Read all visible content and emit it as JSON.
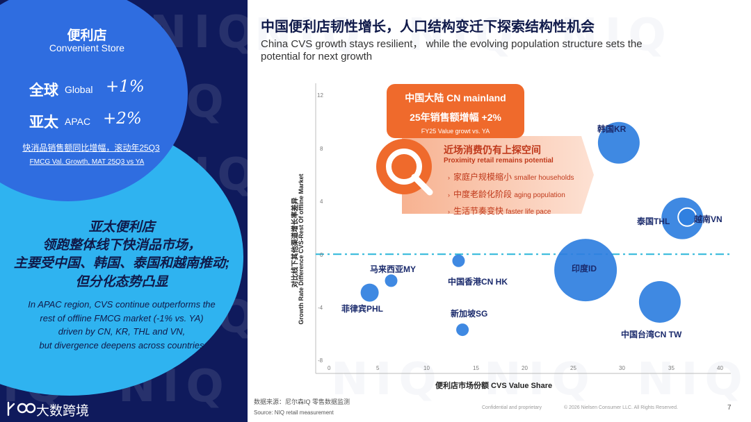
{
  "left": {
    "title_cn": "便利店",
    "title_en": "Convenient Store",
    "global_cn": "全球",
    "global_en": "Global",
    "global_value": "+1%",
    "apac_cn": "亚太",
    "apac_en": "APAC",
    "apac_value": "+2%",
    "note_cn": "快消品销售额同比增幅，滚动年25Q3",
    "note_en": "FMCG Val. Growth, MAT 25Q3 vs YA",
    "headline_lines": [
      "亚太便利店",
      "领跑整体线下快消品市场，",
      "主要受中国、韩国、泰国和越南推动;",
      "但分化态势凸显"
    ],
    "body_lines": [
      "In APAC region, CVS continue outperforms the",
      "rest of offline FMCG market (-1% vs. YA)",
      "driven by CN, KR, THL and VN,",
      "but divergence deepens across countries"
    ],
    "logo_text": "大数跨境"
  },
  "right": {
    "title_cn": "中国便利店韧性增长，人口结构变迁下探索结构性机会",
    "subtitle_line1": "China CVS growth stays resilient， while the evolving population structure sets the",
    "subtitle_line2": "potential for next growth",
    "callout_title": "中国大陆 CN mainland",
    "callout_value": "25年销售额增幅 +2%",
    "callout_note": "FY25 Value growt vs. YA",
    "arrow_title_cn": "近场消费仍有上探空间",
    "arrow_title_en": "Proximity retail remains  potential",
    "arrow_items": [
      {
        "cn": "家庭户规模缩小",
        "en": "smaller households"
      },
      {
        "cn": "中度老龄化阶段",
        "en": "aging population"
      },
      {
        "cn": "生活节奏变快",
        "en": "faster life pace"
      }
    ],
    "source_cn": "数据来源：尼尔森IQ 零售数据监测",
    "source_en": "Source:    NIQ retail measurement",
    "footer_conf": "Confidential and proprietary",
    "footer_copy": "© 2026 Nielsen Consumer LLC. All Rights Reserved.",
    "page_number": "7",
    "watermark": "NIQ"
  },
  "chart_data": {
    "type": "scatter",
    "xlabel": "便利店市场份额 CVS Value Share",
    "ylabel_line1": "对比线下其他渠道增长率差异",
    "ylabel_line2": "Growth Rate Difference CVS-Rest Of offline Market",
    "xlim": [
      0,
      40
    ],
    "ylim": [
      -8,
      12
    ],
    "x_ticks": [
      "0",
      "5",
      "10",
      "15",
      "20",
      "25",
      "30",
      "35",
      "40"
    ],
    "y_ticks": [
      "12",
      "8",
      "4",
      "0",
      "-4",
      "-8"
    ],
    "reference_line_y": 0,
    "points": [
      {
        "label": "韩国KR",
        "x": 29.6,
        "y": 8.4,
        "size": "medium"
      },
      {
        "label": "泰国THL",
        "x": 36.1,
        "y": 2.7,
        "size": "medium"
      },
      {
        "label": "越南VN",
        "x": 36.6,
        "y": 2.8,
        "size": "small"
      },
      {
        "label": "印度ID",
        "x": 26.2,
        "y": -1.2,
        "size": "large"
      },
      {
        "label": "中国台湾CN TW",
        "x": 33.8,
        "y": -3.6,
        "size": "medium"
      },
      {
        "label": "中国香港CN HK",
        "x": 13.2,
        "y": -0.5,
        "size": "tiny"
      },
      {
        "label": "马来西亚MY",
        "x": 6.3,
        "y": -2.0,
        "size": "tiny"
      },
      {
        "label": "菲律宾PHL",
        "x": 4.1,
        "y": -2.9,
        "size": "small"
      },
      {
        "label": "新加坡SG",
        "x": 13.6,
        "y": -5.7,
        "size": "tiny"
      }
    ],
    "colors": {
      "bubble": "#2f7fe0",
      "reference": "#29b6d9",
      "accent": "#ef6a2c"
    }
  }
}
